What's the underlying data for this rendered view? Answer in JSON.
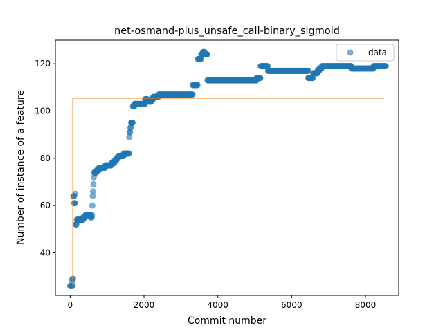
{
  "chart_data": {
    "type": "scatter",
    "title": "net-osmand-plus_unsafe_call-binary_sigmoid",
    "xlabel": "Commit number",
    "ylabel": "Number of instance of a feature",
    "xlim": [
      -400,
      8900
    ],
    "ylim": [
      22,
      130
    ],
    "xticks": [
      0,
      2000,
      4000,
      6000,
      8000
    ],
    "yticks": [
      40,
      60,
      80,
      100,
      120
    ],
    "grid": false,
    "legend": {
      "position": "top-right",
      "entries": [
        "data"
      ]
    },
    "colors": {
      "data": "#1f77b4",
      "fit": "#ff7f0e"
    },
    "series": [
      {
        "name": "data",
        "kind": "scatter",
        "segments": [
          [
            0,
            26
          ],
          [
            40,
            26
          ],
          [
            50,
            28
          ],
          [
            60,
            29
          ],
          [
            70,
            26
          ],
          [
            80,
            29
          ],
          [
            85,
            64
          ],
          [
            95,
            64
          ],
          [
            110,
            61
          ],
          [
            130,
            61
          ],
          [
            140,
            65
          ],
          [
            150,
            52
          ],
          [
            170,
            52
          ],
          [
            180,
            54
          ],
          [
            300,
            54
          ],
          [
            350,
            55
          ],
          [
            420,
            56
          ],
          [
            500,
            56
          ],
          [
            560,
            55
          ],
          [
            590,
            56
          ],
          [
            600,
            60
          ],
          [
            610,
            64
          ],
          [
            620,
            66
          ],
          [
            630,
            69
          ],
          [
            640,
            72
          ],
          [
            650,
            74
          ],
          [
            700,
            74
          ],
          [
            720,
            75
          ],
          [
            780,
            76
          ],
          [
            900,
            76
          ],
          [
            950,
            77
          ],
          [
            1100,
            77
          ],
          [
            1120,
            78
          ],
          [
            1200,
            79
          ],
          [
            1250,
            80
          ],
          [
            1300,
            81
          ],
          [
            1400,
            81
          ],
          [
            1450,
            82
          ],
          [
            1590,
            82
          ],
          [
            1600,
            89
          ],
          [
            1610,
            91
          ],
          [
            1630,
            93
          ],
          [
            1650,
            95
          ],
          [
            1680,
            95
          ],
          [
            1700,
            102
          ],
          [
            1740,
            103
          ],
          [
            2000,
            103
          ],
          [
            2030,
            105
          ],
          [
            2100,
            104
          ],
          [
            2150,
            104
          ],
          [
            2200,
            105
          ],
          [
            2250,
            106
          ],
          [
            2400,
            107
          ],
          [
            3300,
            107
          ],
          [
            3320,
            111
          ],
          [
            3450,
            111
          ],
          [
            3460,
            122
          ],
          [
            3540,
            122
          ],
          [
            3550,
            124
          ],
          [
            3600,
            125
          ],
          [
            3640,
            124
          ],
          [
            3700,
            124
          ],
          [
            3720,
            113
          ],
          [
            5000,
            113
          ],
          [
            5050,
            114
          ],
          [
            5150,
            114
          ],
          [
            5160,
            119
          ],
          [
            5350,
            119
          ],
          [
            5360,
            117
          ],
          [
            6400,
            117
          ],
          [
            6450,
            114
          ],
          [
            6550,
            114
          ],
          [
            6580,
            116
          ],
          [
            6700,
            117
          ],
          [
            6750,
            118
          ],
          [
            6820,
            119
          ],
          [
            7600,
            119
          ],
          [
            7620,
            118
          ],
          [
            8200,
            118
          ],
          [
            8220,
            119
          ],
          [
            8550,
            119
          ]
        ]
      },
      {
        "name": "",
        "kind": "step-line",
        "points": [
          [
            50,
            26
          ],
          [
            75,
            26
          ],
          [
            75,
            105.5
          ],
          [
            8500,
            105.5
          ]
        ]
      }
    ]
  }
}
